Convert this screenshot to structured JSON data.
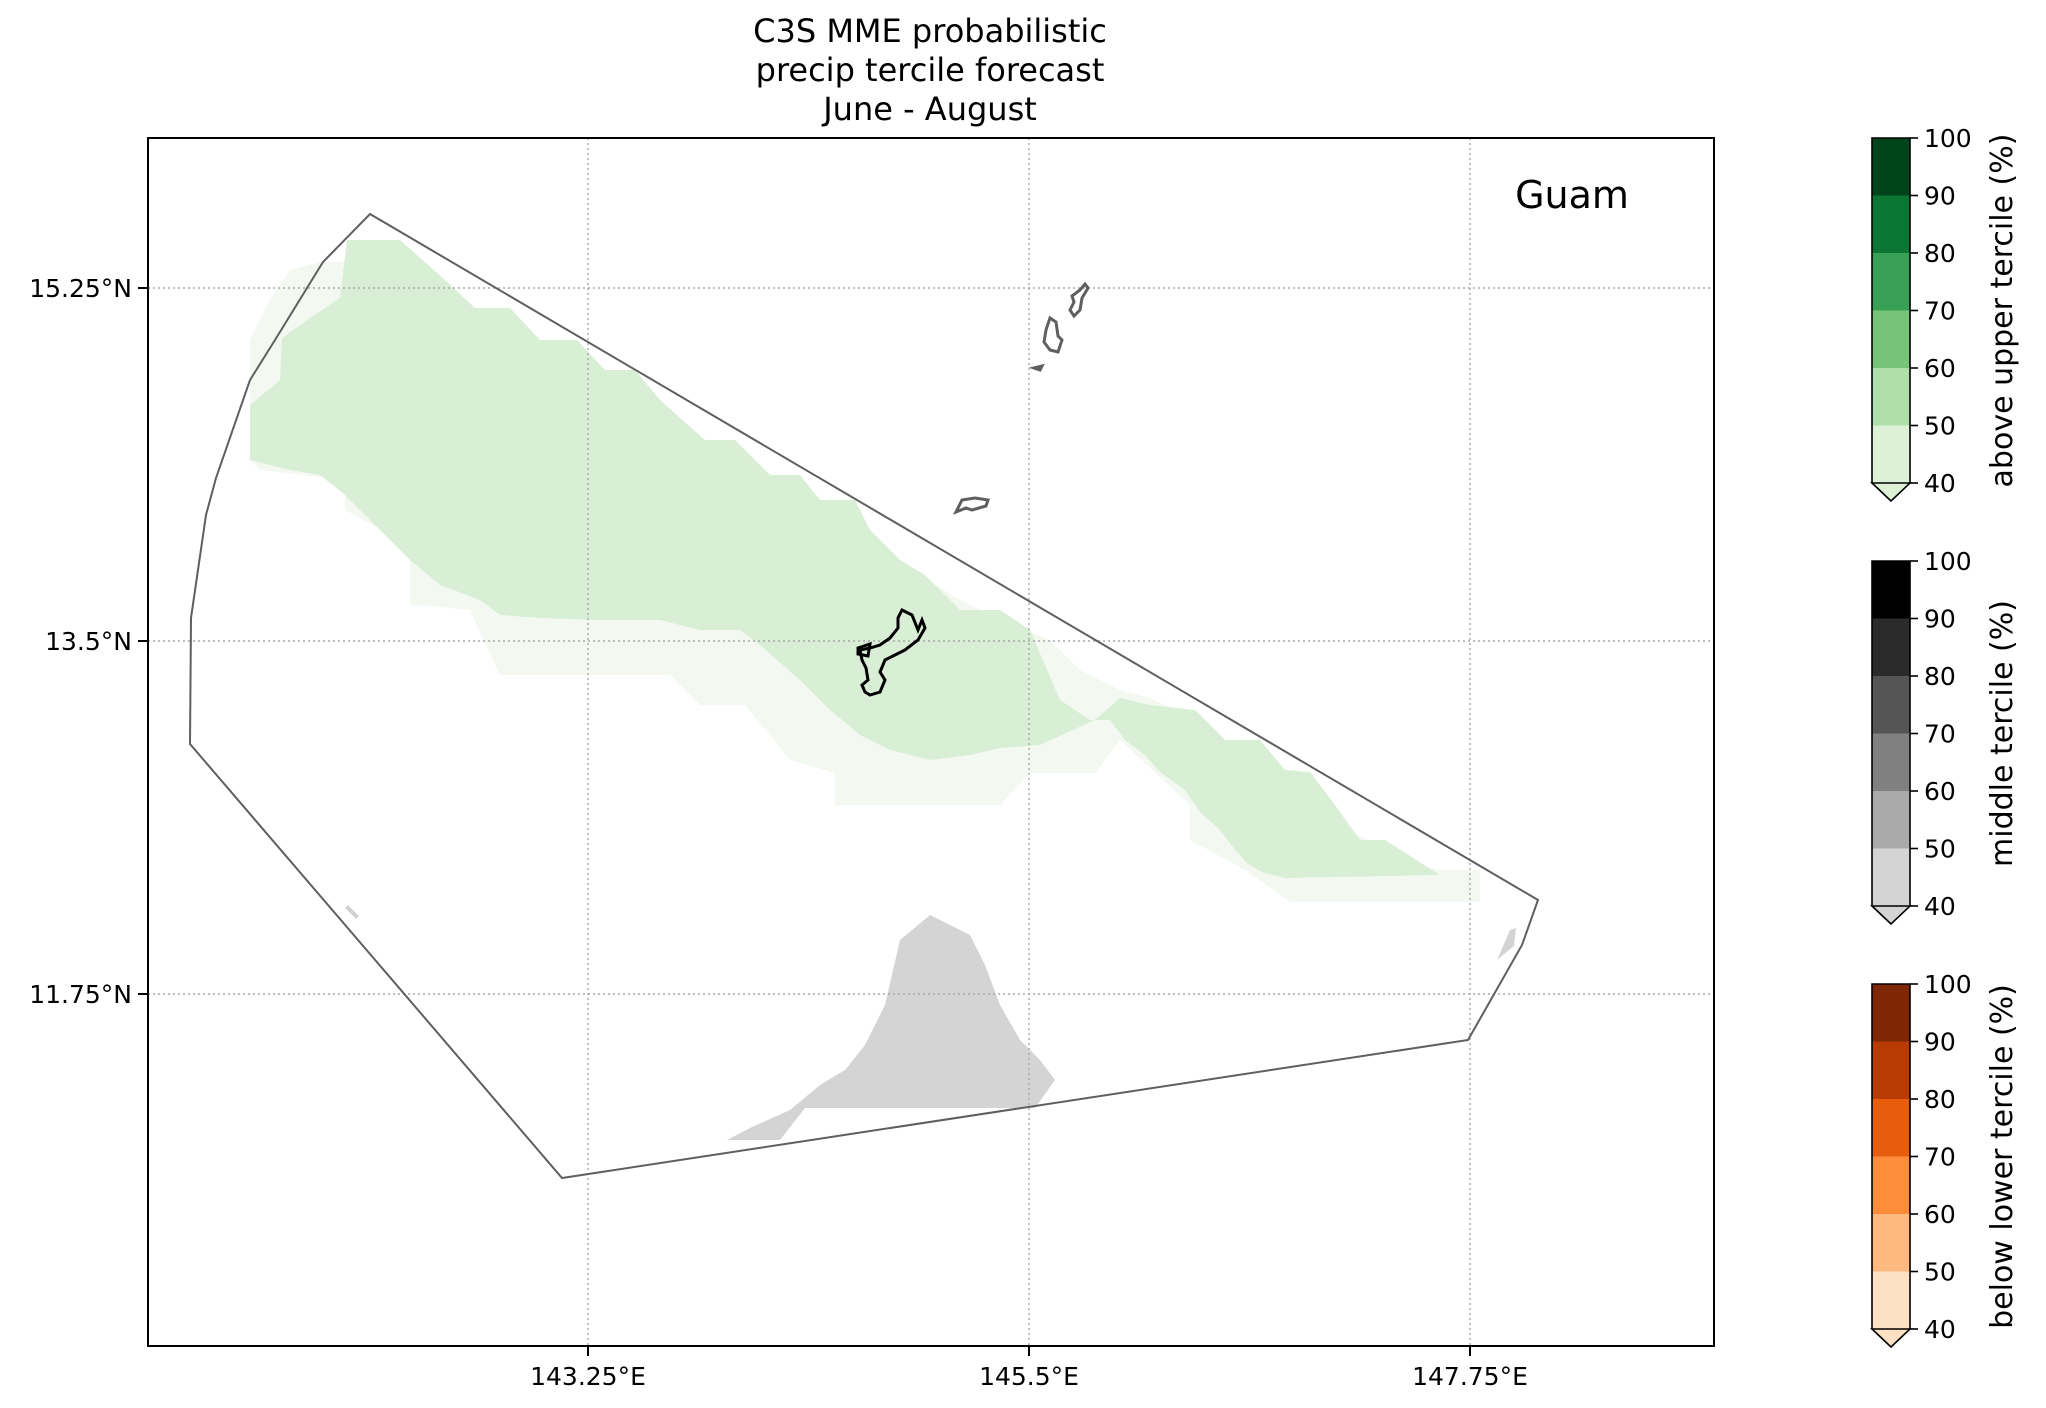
{
  "title_lines": [
    "C3S MME probabilistic",
    "precip tercile forecast",
    "June - August"
  ],
  "region_label": "Guam",
  "axes": {
    "lon_ticks": [
      "143.25°E",
      "145.5°E",
      "147.75°E"
    ],
    "lat_ticks": [
      "15.25°N",
      "13.5°N",
      "11.75°N"
    ]
  },
  "colorbars": [
    {
      "label": "above upper tercile (%)",
      "ticks": [
        "100",
        "90",
        "80",
        "70",
        "60",
        "50",
        "40"
      ],
      "colors": [
        "#00441b",
        "#0b7534",
        "#37a055",
        "#76c477",
        "#b0dfaa",
        "#dcf1d6"
      ]
    },
    {
      "label": "middle tercile (%)",
      "ticks": [
        "100",
        "90",
        "80",
        "70",
        "60",
        "50",
        "40"
      ],
      "colors": [
        "#000000",
        "#2b2b2b",
        "#555555",
        "#808080",
        "#aaaaaa",
        "#d4d4d4"
      ]
    },
    {
      "label": "below lower tercile (%)",
      "ticks": [
        "100",
        "90",
        "80",
        "70",
        "60",
        "50",
        "40"
      ],
      "colors": [
        "#7f2704",
        "#b83b04",
        "#e85d0c",
        "#fd8c3b",
        "#fdb97f",
        "#fee0c3"
      ]
    }
  ],
  "fill_colors": {
    "above_40_50": "#d9efd5",
    "above_faint": "#f3f9f0",
    "middle_40_50": "#d4d4d4"
  }
}
